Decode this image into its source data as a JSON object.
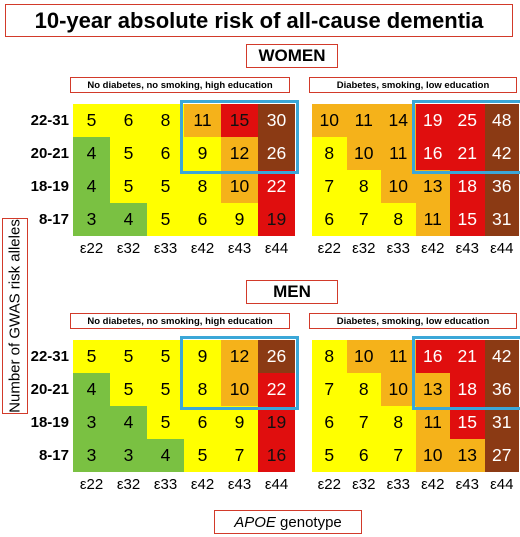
{
  "title": "10-year absolute risk of all-cause dementia",
  "sections": [
    {
      "title": "WOMEN",
      "panels": [
        "No diabetes, no smoking, high education",
        "Diabetes, smoking, low education"
      ]
    },
    {
      "title": "MEN",
      "panels": [
        "No diabetes, no smoking, high education",
        "Diabetes, smoking, low education"
      ]
    }
  ],
  "y_axis_title": "Number of GWAS risk alleles",
  "x_axis_title": {
    "italic": "APOE",
    "rest": " genotype"
  },
  "colors": {
    "green": "#7ac142",
    "yellow": "#ffff00",
    "orange": "#f5b21a",
    "red": "#e00e0e",
    "brown": "#8b3a14",
    "highlight": "#3ba7d8",
    "frame": "#d23a2a"
  },
  "chart_data": [
    {
      "type": "heatmap",
      "group": "WOMEN",
      "panel": "No diabetes, no smoking, high education",
      "x": [
        "ε22",
        "ε32",
        "ε33",
        "ε42",
        "ε43",
        "ε44"
      ],
      "y": [
        "22-31",
        "20-21",
        "18-19",
        "8-17"
      ],
      "values": [
        [
          5,
          6,
          8,
          11,
          15,
          30
        ],
        [
          4,
          5,
          6,
          9,
          12,
          26
        ],
        [
          4,
          5,
          5,
          8,
          10,
          22
        ],
        [
          3,
          4,
          5,
          6,
          9,
          19
        ]
      ]
    },
    {
      "type": "heatmap",
      "group": "WOMEN",
      "panel": "Diabetes, smoking, low education",
      "x": [
        "ε22",
        "ε32",
        "ε33",
        "ε42",
        "ε43",
        "ε44"
      ],
      "y": [
        "22-31",
        "20-21",
        "18-19",
        "8-17"
      ],
      "values": [
        [
          10,
          11,
          14,
          19,
          25,
          48
        ],
        [
          8,
          10,
          11,
          16,
          21,
          42
        ],
        [
          7,
          8,
          10,
          13,
          18,
          36
        ],
        [
          6,
          7,
          8,
          11,
          15,
          31
        ]
      ]
    },
    {
      "type": "heatmap",
      "group": "MEN",
      "panel": "No diabetes, no smoking, high education",
      "x": [
        "ε22",
        "ε32",
        "ε33",
        "ε42",
        "ε43",
        "ε44"
      ],
      "y": [
        "22-31",
        "20-21",
        "18-19",
        "8-17"
      ],
      "values": [
        [
          5,
          5,
          5,
          9,
          12,
          26
        ],
        [
          4,
          5,
          5,
          8,
          10,
          22
        ],
        [
          3,
          4,
          5,
          6,
          9,
          19
        ],
        [
          3,
          3,
          4,
          5,
          7,
          16
        ]
      ]
    },
    {
      "type": "heatmap",
      "group": "MEN",
      "panel": "Diabetes, smoking, low education",
      "x": [
        "ε22",
        "ε32",
        "ε33",
        "ε42",
        "ε43",
        "ε44"
      ],
      "y": [
        "22-31",
        "20-21",
        "18-19",
        "8-17"
      ],
      "values": [
        [
          8,
          10,
          11,
          16,
          21,
          42
        ],
        [
          7,
          8,
          10,
          13,
          18,
          36
        ],
        [
          6,
          7,
          8,
          11,
          15,
          31
        ],
        [
          5,
          6,
          7,
          10,
          13,
          27
        ]
      ]
    }
  ]
}
